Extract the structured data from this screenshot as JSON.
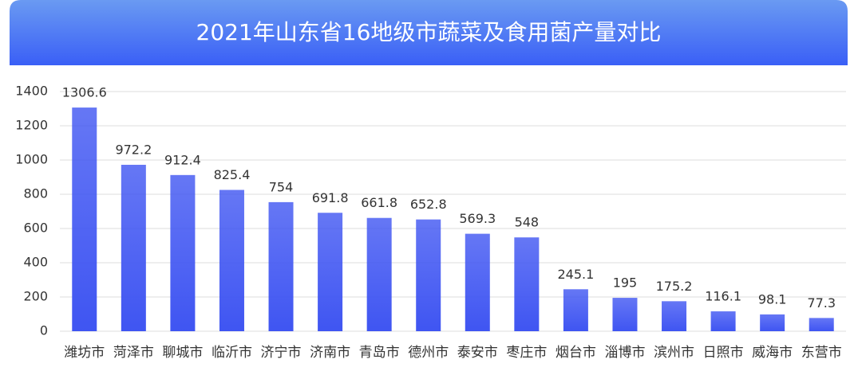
{
  "chart_data": {
    "type": "bar",
    "title": "2021年山东省16地级市蔬菜及食用菌产量对比",
    "categories": [
      "潍坊市",
      "菏泽市",
      "聊城市",
      "临沂市",
      "济宁市",
      "济南市",
      "青岛市",
      "德州市",
      "泰安市",
      "枣庄市",
      "烟台市",
      "淄博市",
      "滨州市",
      "日照市",
      "威海市",
      "东营市"
    ],
    "values": [
      1306.6,
      972.2,
      912.4,
      825.4,
      754,
      691.8,
      661.8,
      652.8,
      569.3,
      548,
      245.1,
      195,
      175.2,
      116.1,
      98.1,
      77.3
    ],
    "color": "#3f55f2",
    "ylim": [
      0,
      1400
    ],
    "yticks": [
      0,
      200,
      400,
      600,
      800,
      1000,
      1200,
      1400
    ],
    "grid": true
  }
}
